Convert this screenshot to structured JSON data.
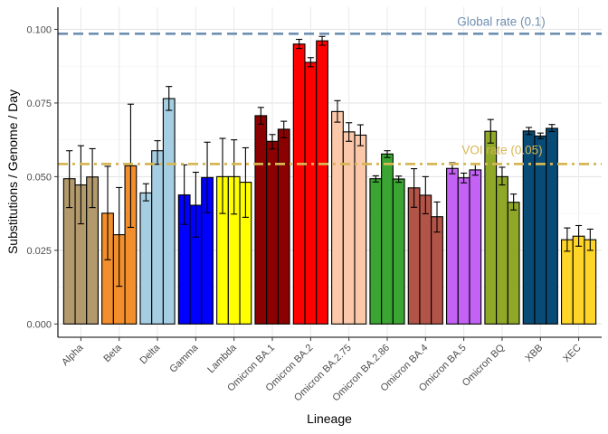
{
  "chart_data": {
    "type": "bar",
    "xlabel": "Lineage",
    "ylabel": "Substitutions / Genome / Day",
    "ylim": [
      -0.0045,
      0.1075
    ],
    "yticks": [
      0.0,
      0.025,
      0.05,
      0.075,
      0.1
    ],
    "ytick_labels": [
      "0.000",
      "0.025",
      "0.050",
      "0.075",
      "0.100"
    ],
    "grid": true,
    "bars_per_group": 3,
    "groups": [
      {
        "name": "Alpha",
        "color": "#b39a6d",
        "values": [
          0.0493,
          0.0472,
          0.0499
        ],
        "err_low": [
          0.0395,
          0.034,
          0.0395
        ],
        "err_high": [
          0.0588,
          0.0605,
          0.0595
        ]
      },
      {
        "name": "Beta",
        "color": "#f28e2b",
        "values": [
          0.0376,
          0.0303,
          0.0537
        ],
        "err_low": [
          0.0218,
          0.0128,
          0.0328
        ],
        "err_high": [
          0.0535,
          0.0463,
          0.0746
        ]
      },
      {
        "name": "Delta",
        "color": "#a6cee3",
        "values": [
          0.0445,
          0.0588,
          0.0765
        ],
        "err_low": [
          0.0418,
          0.0542,
          0.0725
        ],
        "err_high": [
          0.0476,
          0.0622,
          0.0806
        ]
      },
      {
        "name": "Gamma",
        "color": "#0000ff",
        "values": [
          0.0438,
          0.0403,
          0.0497
        ],
        "err_low": [
          0.0338,
          0.0295,
          0.0378
        ],
        "err_high": [
          0.054,
          0.0515,
          0.0617
        ]
      },
      {
        "name": "Lambda",
        "color": "#ffff00",
        "values": [
          0.05,
          0.05,
          0.0481
        ],
        "err_low": [
          0.0375,
          0.0373,
          0.0362
        ],
        "err_high": [
          0.063,
          0.0625,
          0.0598
        ]
      },
      {
        "name": "Omicron BA.1",
        "color": "#8b0000",
        "values": [
          0.0707,
          0.062,
          0.0661
        ],
        "err_low": [
          0.0678,
          0.0594,
          0.0632
        ],
        "err_high": [
          0.0735,
          0.0643,
          0.0688
        ]
      },
      {
        "name": "Omicron BA.2",
        "color": "#ff0000",
        "values": [
          0.095,
          0.0888,
          0.0961
        ],
        "err_low": [
          0.0935,
          0.0873,
          0.0946
        ],
        "err_high": [
          0.0966,
          0.0904,
          0.0976
        ]
      },
      {
        "name": "Omicron BA.2.75",
        "color": "#fbc8a9",
        "values": [
          0.0721,
          0.0652,
          0.0641
        ],
        "err_low": [
          0.0685,
          0.062,
          0.0605
        ],
        "err_high": [
          0.0758,
          0.0683,
          0.0676
        ]
      },
      {
        "name": "Omicron BA.2.86",
        "color": "#3aa532",
        "values": [
          0.0493,
          0.0577,
          0.0492
        ],
        "err_low": [
          0.0482,
          0.0565,
          0.0481
        ],
        "err_high": [
          0.0503,
          0.0588,
          0.0502
        ]
      },
      {
        "name": "Omicron BA.4",
        "color": "#b35448",
        "values": [
          0.0462,
          0.0437,
          0.0364
        ],
        "err_low": [
          0.0396,
          0.0374,
          0.0312
        ],
        "err_high": [
          0.0527,
          0.05,
          0.0414
        ]
      },
      {
        "name": "Omicron BA.5",
        "color": "#c362f5",
        "values": [
          0.0528,
          0.0496,
          0.0523
        ],
        "err_low": [
          0.051,
          0.0479,
          0.0505
        ],
        "err_high": [
          0.0547,
          0.0512,
          0.0542
        ]
      },
      {
        "name": "Omicron BQ",
        "color": "#8fa828",
        "values": [
          0.0654,
          0.05,
          0.0413
        ],
        "err_low": [
          0.0614,
          0.0472,
          0.0387
        ],
        "err_high": [
          0.0694,
          0.0532,
          0.0441
        ]
      },
      {
        "name": "XBB",
        "color": "#084b76",
        "values": [
          0.0655,
          0.0638,
          0.0664
        ],
        "err_low": [
          0.0643,
          0.0629,
          0.0653
        ],
        "err_high": [
          0.0667,
          0.0648,
          0.0677
        ]
      },
      {
        "name": "XEC",
        "color": "#ffd52a",
        "values": [
          0.0286,
          0.0298,
          0.0286
        ],
        "err_low": [
          0.0247,
          0.0264,
          0.025
        ],
        "err_high": [
          0.0326,
          0.0334,
          0.0322
        ]
      }
    ],
    "reference_lines": [
      {
        "label": "Global rate (0.1)",
        "value": 0.0985,
        "color": "#6f8fb0",
        "style": "dashed"
      },
      {
        "label": "VOI rate (0.05)",
        "value": 0.0543,
        "color": "#d7b655",
        "style": "dashdot"
      }
    ]
  }
}
